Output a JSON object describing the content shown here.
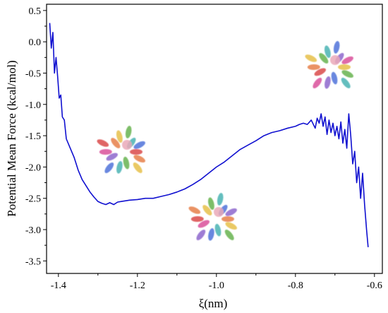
{
  "chart_data": {
    "type": "line",
    "xlabel": "ξ(nm)",
    "ylabel": "Potential Mean Force (kcal/mol)",
    "xlim": [
      -1.43,
      -0.58
    ],
    "ylim": [
      -3.7,
      0.6
    ],
    "xticks": [
      -1.4,
      -1.2,
      -1.0,
      -0.8,
      -0.6
    ],
    "xtick_labels": [
      "-1.4",
      "-1.2",
      "-1.0",
      "-0.8",
      "-0.6"
    ],
    "yticks": [
      0.5,
      0.0,
      -0.5,
      -1.0,
      -1.5,
      -2.0,
      -2.5,
      -3.0,
      -3.5
    ],
    "ytick_labels": [
      "0.5",
      "0.0",
      "-0.5",
      "-1.0",
      "-1.5",
      "-2.0",
      "-2.5",
      "-3.0",
      "-3.5"
    ],
    "grid": false,
    "line_color": "#1010d0",
    "series": [
      {
        "x": [
          -1.422,
          -1.418,
          -1.414,
          -1.41,
          -1.406,
          -1.402,
          -1.398,
          -1.394,
          -1.39,
          -1.385,
          -1.38,
          -1.37,
          -1.36,
          -1.35,
          -1.34,
          -1.33,
          -1.32,
          -1.31,
          -1.3,
          -1.29,
          -1.28,
          -1.27,
          -1.26,
          -1.25,
          -1.24,
          -1.22,
          -1.2,
          -1.18,
          -1.16,
          -1.14,
          -1.12,
          -1.1,
          -1.08,
          -1.06,
          -1.04,
          -1.02,
          -1.0,
          -0.98,
          -0.96,
          -0.94,
          -0.92,
          -0.9,
          -0.88,
          -0.86,
          -0.84,
          -0.82,
          -0.8,
          -0.79,
          -0.78,
          -0.77,
          -0.76,
          -0.75,
          -0.745,
          -0.74,
          -0.735,
          -0.73,
          -0.725,
          -0.72,
          -0.715,
          -0.71,
          -0.705,
          -0.7,
          -0.695,
          -0.69,
          -0.685,
          -0.68,
          -0.675,
          -0.67,
          -0.665,
          -0.66,
          -0.655,
          -0.65,
          -0.645,
          -0.64,
          -0.635,
          -0.63,
          -0.625,
          -0.62,
          -0.616
        ],
        "y": [
          0.3,
          -0.1,
          0.15,
          -0.5,
          -0.25,
          -0.55,
          -0.9,
          -0.85,
          -1.2,
          -1.25,
          -1.55,
          -1.7,
          -1.85,
          -2.05,
          -2.2,
          -2.3,
          -2.4,
          -2.48,
          -2.55,
          -2.58,
          -2.6,
          -2.57,
          -2.6,
          -2.56,
          -2.55,
          -2.53,
          -2.52,
          -2.5,
          -2.5,
          -2.47,
          -2.44,
          -2.4,
          -2.35,
          -2.28,
          -2.2,
          -2.1,
          -2.0,
          -1.92,
          -1.82,
          -1.72,
          -1.65,
          -1.58,
          -1.5,
          -1.45,
          -1.42,
          -1.38,
          -1.35,
          -1.32,
          -1.3,
          -1.32,
          -1.25,
          -1.38,
          -1.22,
          -1.3,
          -1.15,
          -1.35,
          -1.2,
          -1.48,
          -1.25,
          -1.45,
          -1.3,
          -1.5,
          -1.35,
          -1.55,
          -1.28,
          -1.62,
          -1.4,
          -1.7,
          -1.15,
          -1.5,
          -1.95,
          -1.75,
          -2.25,
          -2.0,
          -2.5,
          -2.1,
          -2.6,
          -3.0,
          -3.28
        ]
      }
    ],
    "molecule_insets": 3
  }
}
